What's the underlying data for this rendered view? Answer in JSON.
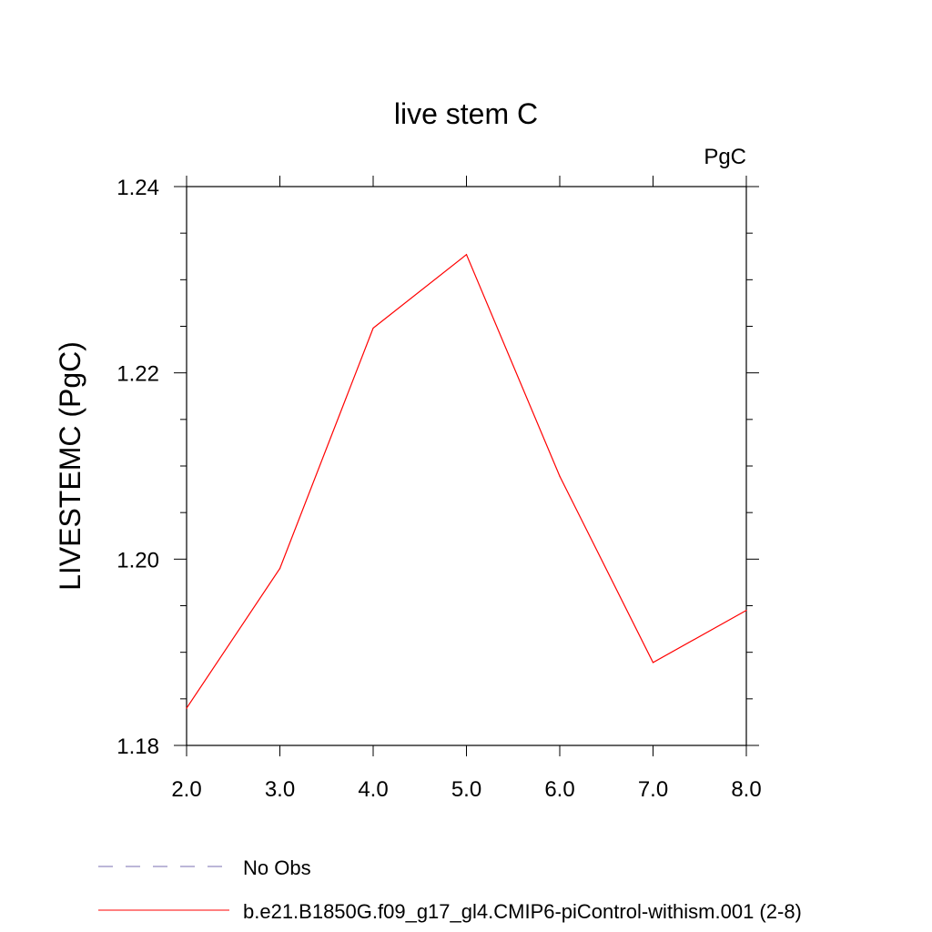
{
  "chart_data": {
    "type": "line",
    "title": "live stem C",
    "units_label": "PgC",
    "xlabel": "",
    "ylabel": "LIVESTEMC  (PgC)",
    "xlim": [
      2.0,
      8.0
    ],
    "ylim": [
      1.18,
      1.24
    ],
    "x_ticks": [
      "2.0",
      "3.0",
      "4.0",
      "5.0",
      "6.0",
      "7.0",
      "8.0"
    ],
    "y_ticks": [
      "1.18",
      "1.20",
      "1.22",
      "1.24"
    ],
    "grid": false,
    "legend_position": "bottom",
    "series": [
      {
        "name": "b.e21.B1850G.f09_g17_gl4.CMIP6-piControl-withism.001 (2-8)",
        "color": "#ff0000",
        "style": "solid",
        "x": [
          2.0,
          3.0,
          4.0,
          5.0,
          6.0,
          7.0,
          8.0
        ],
        "y": [
          1.184,
          1.199,
          1.2248,
          1.2327,
          1.2089,
          1.1889,
          1.1945
        ]
      }
    ],
    "legend": [
      {
        "label": "No Obs",
        "color": "#7a6fb0",
        "style": "dashed"
      },
      {
        "label": "b.e21.B1850G.f09_g17_gl4.CMIP6-piControl-withism.001 (2-8)",
        "color": "#ff0000",
        "style": "solid"
      }
    ]
  }
}
